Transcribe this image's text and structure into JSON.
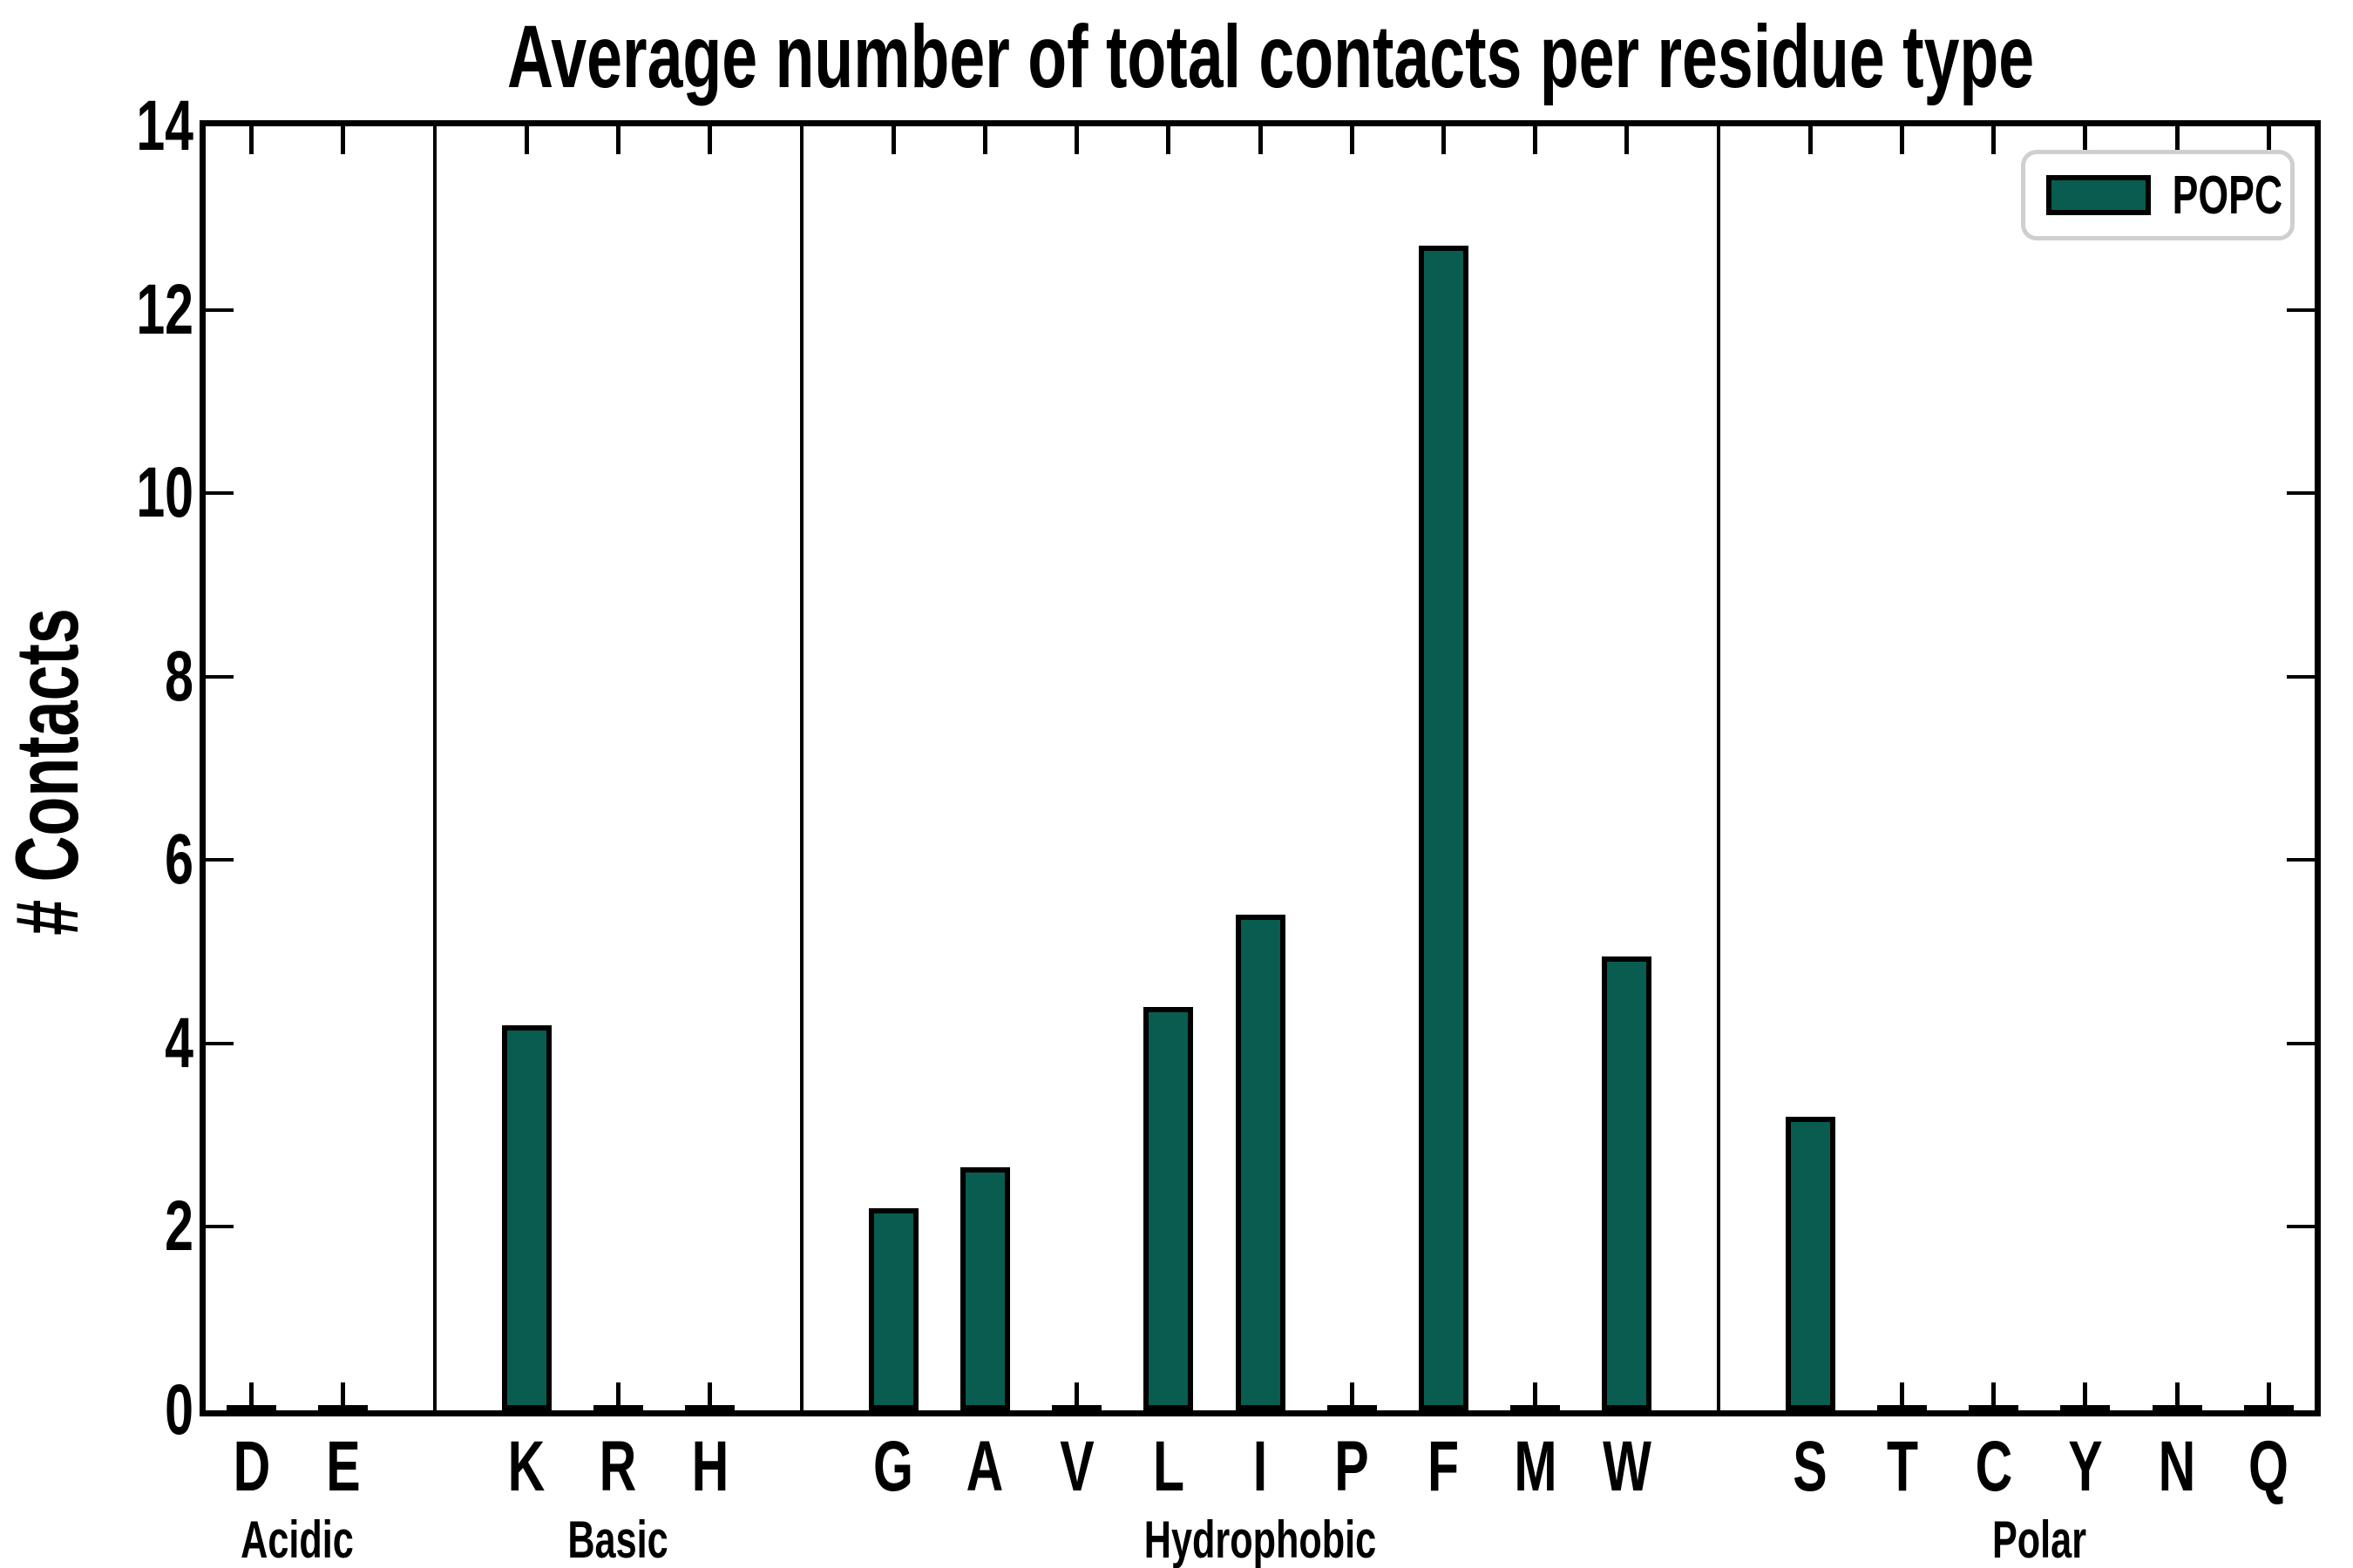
{
  "title": "Average number of total contacts per residue type",
  "ylabel": "# Contacts",
  "legend": {
    "label": "POPC"
  },
  "colors": {
    "bar_fill": "#085d50",
    "bar_edge": "#000000",
    "frame": "#000000",
    "legend_border": "#cfcfcf",
    "background": "#ffffff",
    "text": "#000000"
  },
  "chart_data": {
    "type": "bar",
    "title": "Average number of total contacts per residue type",
    "xlabel": "",
    "ylabel": "# Contacts",
    "ylim": [
      0,
      14
    ],
    "yticks": [
      0,
      2,
      4,
      6,
      8,
      10,
      12,
      14
    ],
    "grid": false,
    "legend_position": "upper right",
    "series": [
      {
        "name": "POPC",
        "color": "#085d50"
      }
    ],
    "groups": [
      {
        "label": "Acidic",
        "residues": [
          "D",
          "E"
        ],
        "values": [
          0.03,
          0.03
        ]
      },
      {
        "label": "Basic",
        "residues": [
          "K",
          "R",
          "H"
        ],
        "values": [
          4.2,
          0.03,
          0.03
        ]
      },
      {
        "label": "Hydrophobic",
        "residues": [
          "G",
          "A",
          "V",
          "L",
          "I",
          "P",
          "F",
          "M",
          "W"
        ],
        "values": [
          2.2,
          2.65,
          0.05,
          4.4,
          5.4,
          0.04,
          12.7,
          0.03,
          4.95
        ]
      },
      {
        "label": "Polar",
        "residues": [
          "S",
          "T",
          "C",
          "Y",
          "N",
          "Q"
        ],
        "values": [
          3.2,
          0.03,
          0.03,
          0.03,
          0.03,
          0.03
        ]
      }
    ]
  }
}
